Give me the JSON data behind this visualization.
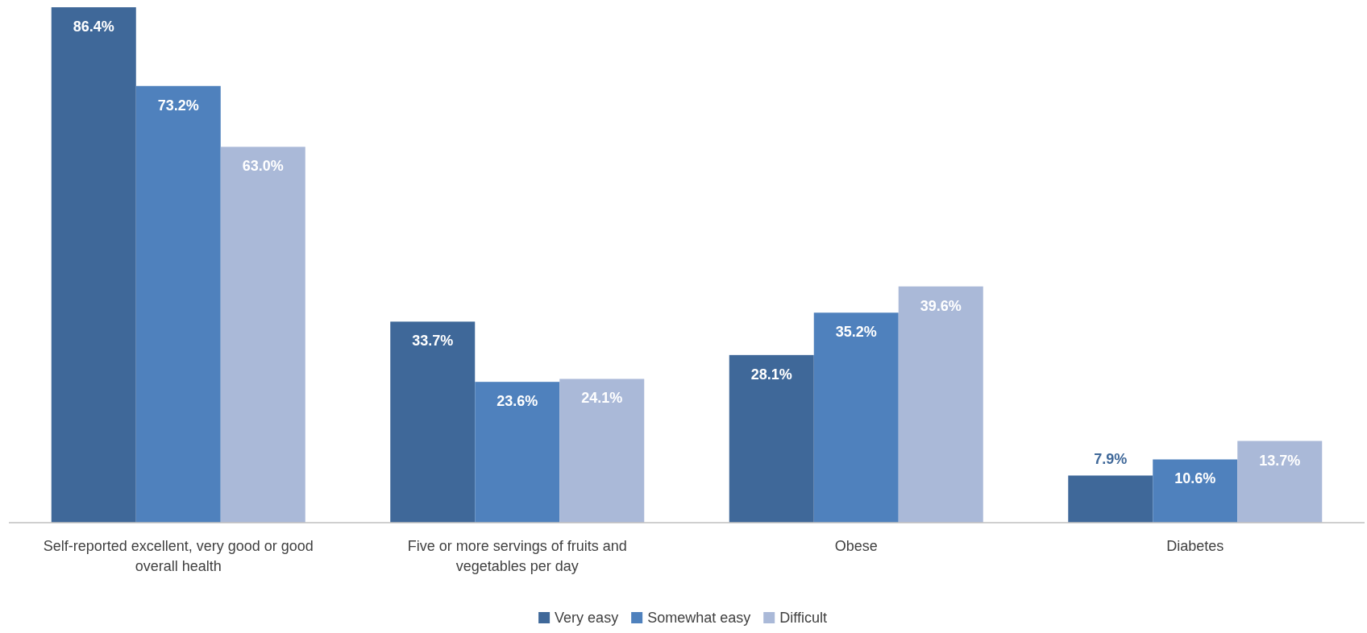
{
  "chart_data": {
    "type": "bar",
    "categories": [
      "Self-reported excellent, very good or good overall health",
      "Five or more servings of fruits and vegetables per day",
      "Obese",
      "Diabetes"
    ],
    "series": [
      {
        "name": "Very easy",
        "color": "#3f6899",
        "values": [
          86.4,
          33.7,
          28.1,
          7.9
        ],
        "value_labels": [
          "86.4%",
          "33.7%",
          "28.1%",
          "7.9%"
        ]
      },
      {
        "name": "Somewhat easy",
        "color": "#4f81bd",
        "values": [
          73.2,
          23.6,
          35.2,
          10.6
        ],
        "value_labels": [
          "73.2%",
          "23.6%",
          "35.2%",
          "10.6%"
        ]
      },
      {
        "name": "Difficult",
        "color": "#aab9d8",
        "values": [
          63.0,
          24.1,
          39.6,
          13.7
        ],
        "value_labels": [
          "63.0%",
          "24.1%",
          "39.6%",
          "13.7%"
        ]
      }
    ],
    "legend": "bottom",
    "grid": false
  }
}
